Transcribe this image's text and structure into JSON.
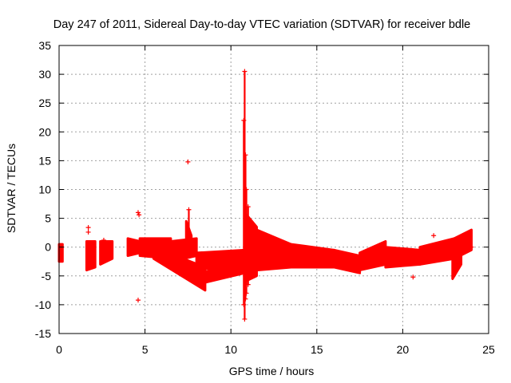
{
  "chart_data": {
    "type": "scatter",
    "title": "Day 247 of 2011, Sidereal Day-to-day VTEC variation (SDTVAR) for receiver bdle",
    "xlabel": "GPS time / hours",
    "ylabel": "SDTVAR / TECUs",
    "xlim": [
      0,
      25
    ],
    "ylim": [
      -15,
      35
    ],
    "xticks": [
      0,
      5,
      10,
      15,
      20,
      25
    ],
    "yticks": [
      -15,
      -10,
      -5,
      0,
      5,
      10,
      15,
      20,
      25,
      30,
      35
    ],
    "grid": true,
    "marker": "+",
    "color": "#ff0000",
    "series": [
      {
        "name": "SDTVAR",
        "bands": [
          {
            "x0": 0.0,
            "x1": 0.2,
            "lo": [
              -2.5,
              -2.5
            ],
            "hi": [
              0.5,
              0.5
            ]
          },
          {
            "x0": 1.6,
            "x1": 2.1,
            "lo": [
              -4.0,
              -3.5
            ],
            "hi": [
              1.0,
              1.0
            ]
          },
          {
            "x0": 2.4,
            "x1": 3.1,
            "lo": [
              -3.0,
              -2.0
            ],
            "hi": [
              1.0,
              1.0
            ]
          },
          {
            "x0": 4.0,
            "x1": 4.7,
            "lo": [
              -1.5,
              -1.0
            ],
            "hi": [
              1.5,
              1.0
            ]
          },
          {
            "x0": 4.7,
            "x1": 6.5,
            "lo": [
              -1.5,
              -2.0
            ],
            "hi": [
              1.5,
              1.5
            ]
          },
          {
            "x0": 5.5,
            "x1": 8.5,
            "lo": [
              -2.0,
              -7.5
            ],
            "hi": [
              0.0,
              -3.5
            ]
          },
          {
            "x0": 6.5,
            "x1": 8.0,
            "lo": [
              -2.5,
              -1.5
            ],
            "hi": [
              1.0,
              1.5
            ]
          },
          {
            "x0": 7.4,
            "x1": 7.7,
            "lo": [
              -1.0,
              -1.0
            ],
            "hi": [
              4.5,
              2.0
            ]
          },
          {
            "x0": 8.0,
            "x1": 10.8,
            "lo": [
              -3.5,
              -4.5
            ],
            "hi": [
              -1.0,
              -0.5
            ]
          },
          {
            "x0": 8.0,
            "x1": 10.8,
            "lo": [
              -6.5,
              -4.5
            ],
            "hi": [
              -4.5,
              -3.0
            ]
          },
          {
            "x0": 10.8,
            "x1": 11.5,
            "lo": [
              -6.0,
              -5.0
            ],
            "hi": [
              6.0,
              3.5
            ]
          },
          {
            "x0": 11.5,
            "x1": 13.5,
            "lo": [
              -4.0,
              -3.5
            ],
            "hi": [
              3.0,
              0.5
            ]
          },
          {
            "x0": 13.5,
            "x1": 16.0,
            "lo": [
              -3.5,
              -3.5
            ],
            "hi": [
              0.5,
              -0.5
            ]
          },
          {
            "x0": 16.0,
            "x1": 17.5,
            "lo": [
              -3.5,
              -4.5
            ],
            "hi": [
              -0.5,
              -1.5
            ]
          },
          {
            "x0": 17.5,
            "x1": 19.0,
            "lo": [
              -4.0,
              -3.0
            ],
            "hi": [
              -1.0,
              1.0
            ]
          },
          {
            "x0": 19.0,
            "x1": 21.0,
            "lo": [
              -3.5,
              -3.0
            ],
            "hi": [
              0.0,
              -0.5
            ]
          },
          {
            "x0": 21.0,
            "x1": 23.0,
            "lo": [
              -3.0,
              -2.0
            ],
            "hi": [
              0.0,
              1.5
            ]
          },
          {
            "x0": 23.0,
            "x1": 24.0,
            "lo": [
              -2.0,
              -0.5
            ],
            "hi": [
              1.5,
              3.0
            ]
          },
          {
            "x0": 22.9,
            "x1": 23.4,
            "lo": [
              -5.5,
              -3.0
            ],
            "hi": [
              -2.0,
              -1.0
            ]
          }
        ],
        "spikes": [
          {
            "x": 10.8,
            "lo": -12.5,
            "hi": 30.5
          },
          {
            "x": 10.75,
            "lo": -10.0,
            "hi": 22.0
          },
          {
            "x": 10.85,
            "lo": -9.0,
            "hi": 16.0
          },
          {
            "x": 10.9,
            "lo": -8.0,
            "hi": 10.0
          },
          {
            "x": 11.0,
            "lo": -6.5,
            "hi": 7.0
          },
          {
            "x": 7.55,
            "lo": -1.0,
            "hi": 6.5
          }
        ],
        "outliers": [
          {
            "x": 7.5,
            "y": 14.8
          },
          {
            "x": 4.6,
            "y": -9.2
          },
          {
            "x": 4.6,
            "y": 6.0
          },
          {
            "x": 4.65,
            "y": 5.6
          },
          {
            "x": 1.7,
            "y": 3.4
          },
          {
            "x": 1.7,
            "y": 2.6
          },
          {
            "x": 2.6,
            "y": 1.2
          },
          {
            "x": 21.8,
            "y": 2.0
          },
          {
            "x": 20.0,
            "y": -0.6
          },
          {
            "x": 20.6,
            "y": -5.2
          },
          {
            "x": 22.6,
            "y": 1.0
          },
          {
            "x": 18.3,
            "y": -0.8
          },
          {
            "x": 24.0,
            "y": 0.0
          }
        ]
      }
    ]
  }
}
